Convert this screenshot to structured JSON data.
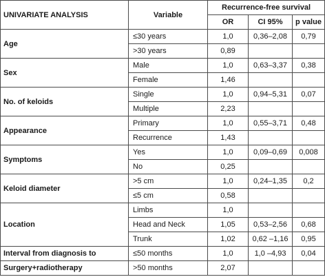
{
  "table": {
    "header": {
      "title": "UNIVARIATE ANALYSIS",
      "variable": "Variable",
      "outcome": "Recurrence-free survival",
      "or": "OR",
      "ci": "CI 95%",
      "p": "p value"
    },
    "rows": [
      {
        "factor": "Age",
        "variable": "≤30 years",
        "or": "1,0",
        "ci": "0,36–2,08",
        "p": "0,79"
      },
      {
        "factor": "",
        "variable": ">30 years",
        "or": "0,89",
        "ci": "",
        "p": ""
      },
      {
        "factor": "Sex",
        "variable": "Male",
        "or": "1,0",
        "ci": "0,63–3,37",
        "p": "0,38"
      },
      {
        "factor": "",
        "variable": "Female",
        "or": "1,46",
        "ci": "",
        "p": ""
      },
      {
        "factor": "No. of keloids",
        "variable": "Single",
        "or": "1,0",
        "ci": "0,94–5,31",
        "p": "0,07"
      },
      {
        "factor": "",
        "variable": "Multiple",
        "or": "2,23",
        "ci": "",
        "p": ""
      },
      {
        "factor": "Appearance",
        "variable": "Primary",
        "or": "1,0",
        "ci": "0,55–3,71",
        "p": "0,48"
      },
      {
        "factor": "",
        "variable": "Recurrence",
        "or": "1,43",
        "ci": "",
        "p": ""
      },
      {
        "factor": "Symptoms",
        "variable": "Yes",
        "or": "1,0",
        "ci": "0,09–0,69",
        "p": "0,008"
      },
      {
        "factor": "",
        "variable": "No",
        "or": "0,25",
        "ci": "",
        "p": ""
      },
      {
        "factor": "Keloid diameter",
        "variable": ">5 cm",
        "or": "1,0",
        "ci": "0,24–1,35",
        "p": "0,2"
      },
      {
        "factor": "",
        "variable": "≤5 cm",
        "or": "0,58",
        "ci": "",
        "p": ""
      },
      {
        "factor": "Location",
        "variable": "Limbs",
        "or": "1,0",
        "ci": "",
        "p": ""
      },
      {
        "factor": "",
        "variable": "Head and Neck",
        "or": "1,05",
        "ci": "0,53–2,56",
        "p": "0,68"
      },
      {
        "factor": "",
        "variable": "Trunk",
        "or": "1,02",
        "ci": "0,62 –1,16",
        "p": "0,95"
      },
      {
        "factor": "Interval from diagnosis to",
        "variable": "≤50 months",
        "or": "1,0",
        "ci": "1,0 –4,93",
        "p": "0,04"
      },
      {
        "factor": "Surgery+radiotherapy",
        "variable": ">50 months",
        "or": "2,07",
        "ci": "",
        "p": ""
      }
    ]
  }
}
